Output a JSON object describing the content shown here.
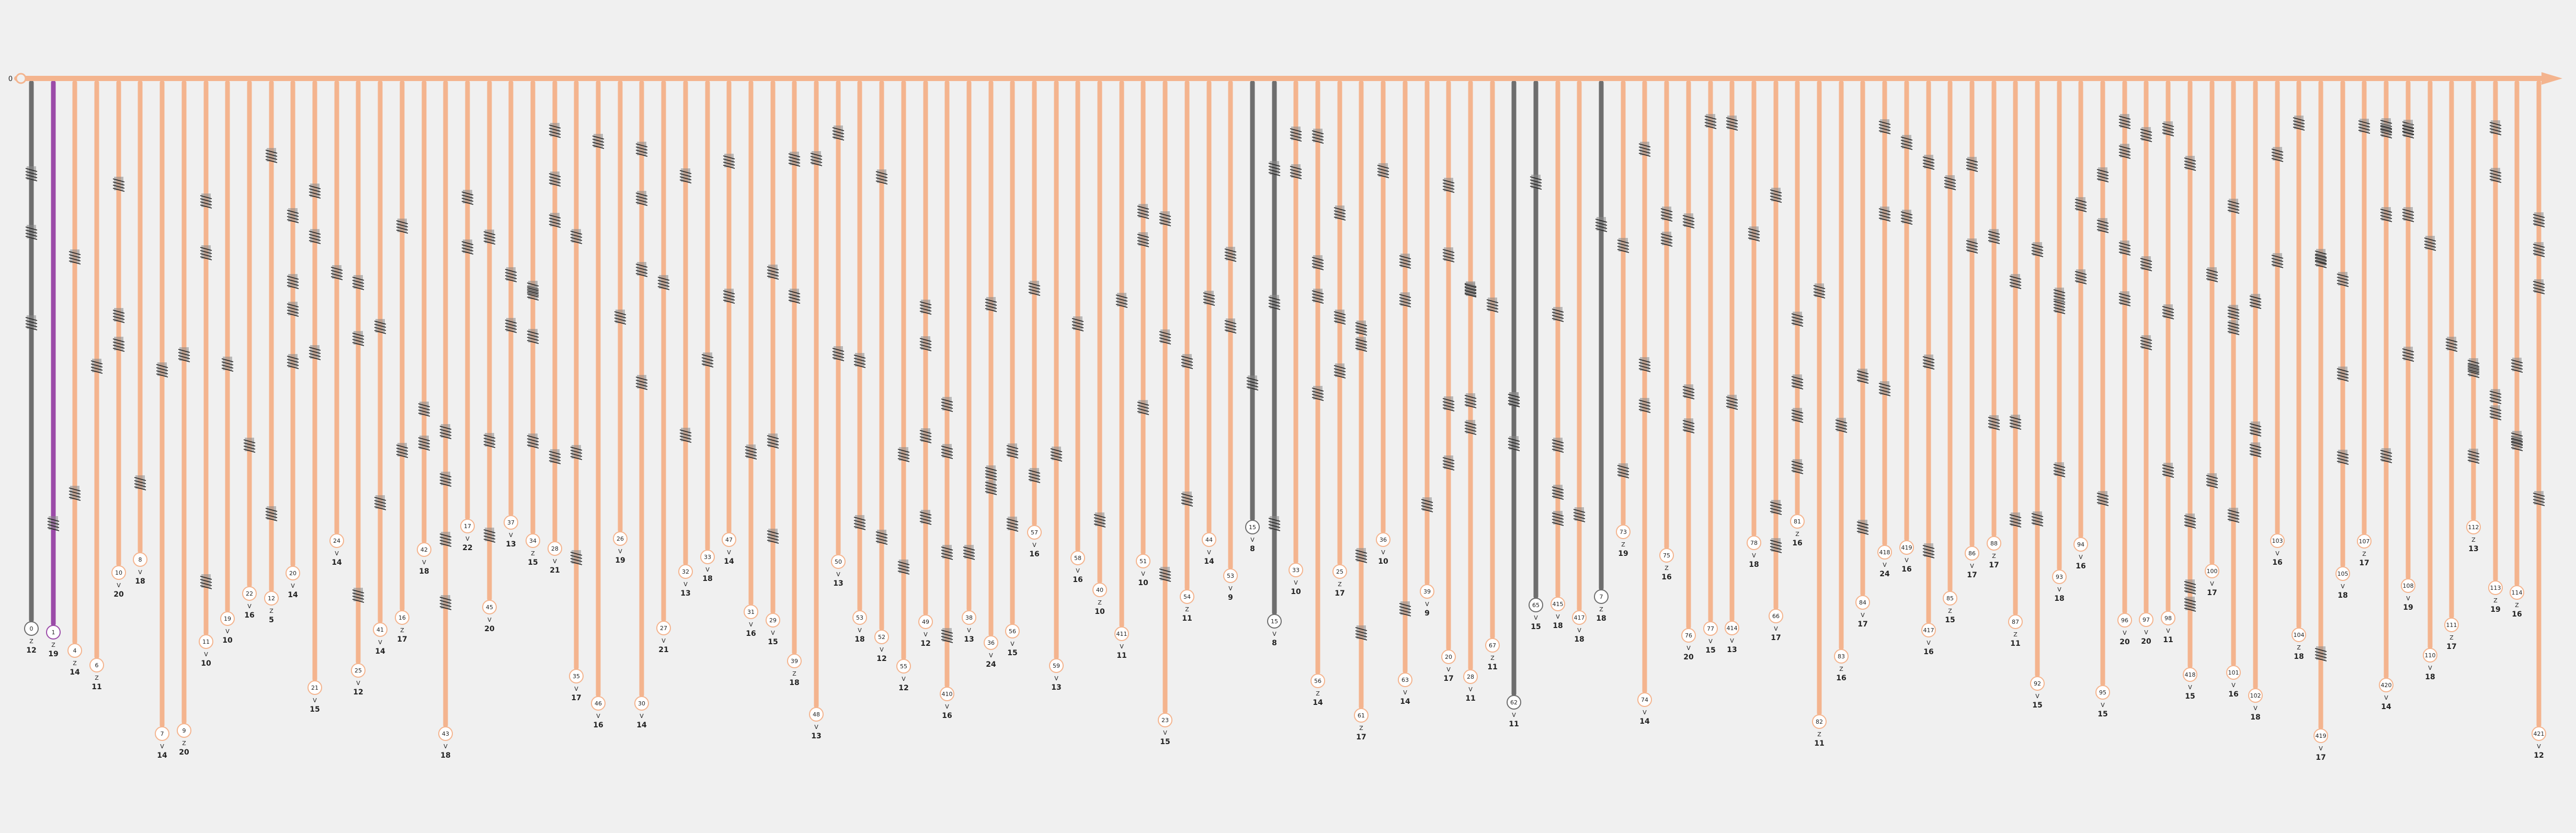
{
  "title": "",
  "root_label": "0",
  "colors": {
    "background": "#f0f0f0",
    "branch": "#f4b48e",
    "branch_highlight": "#9b4ba8",
    "branch_muted": "#6e6e6e",
    "label_circle": "#ffffff",
    "text": "#222222",
    "hatch": "#222222"
  },
  "branches": [
    {
      "label": "0",
      "mark": "Z",
      "value": "12",
      "color": "muted"
    },
    {
      "label": "1",
      "mark": "Z",
      "value": "19",
      "color": "highlight"
    },
    {
      "label": "4",
      "mark": "Z",
      "value": "14"
    },
    {
      "label": "6",
      "mark": "Z",
      "value": "11"
    },
    {
      "label": "10",
      "mark": "V",
      "value": "20"
    },
    {
      "label": "8",
      "mark": "V",
      "value": "18"
    },
    {
      "label": "7",
      "mark": "V",
      "value": "14"
    },
    {
      "label": "9",
      "mark": "Z",
      "value": "20"
    },
    {
      "label": "11",
      "mark": "V",
      "value": "10"
    },
    {
      "label": "19",
      "mark": "V",
      "value": "10"
    },
    {
      "label": "22",
      "mark": "V",
      "value": "16"
    },
    {
      "label": "12",
      "mark": "Z",
      "value": "5"
    },
    {
      "label": "20",
      "mark": "V",
      "value": "14"
    },
    {
      "label": "21",
      "mark": "V",
      "value": "15"
    },
    {
      "label": "24",
      "mark": "V",
      "value": "14"
    },
    {
      "label": "25",
      "mark": "V",
      "value": "12"
    },
    {
      "label": "41",
      "mark": "V",
      "value": "14"
    },
    {
      "label": "16",
      "mark": "Z",
      "value": "17"
    },
    {
      "label": "42",
      "mark": "V",
      "value": "18"
    },
    {
      "label": "43",
      "mark": "V",
      "value": "18"
    },
    {
      "label": "17",
      "mark": "V",
      "value": "22"
    },
    {
      "label": "45",
      "mark": "V",
      "value": "20"
    },
    {
      "label": "37",
      "mark": "V",
      "value": "13"
    },
    {
      "label": "34",
      "mark": "Z",
      "value": "15"
    },
    {
      "label": "28",
      "mark": "V",
      "value": "21"
    },
    {
      "label": "35",
      "mark": "V",
      "value": "17"
    },
    {
      "label": "46",
      "mark": "V",
      "value": "16"
    },
    {
      "label": "26",
      "mark": "V",
      "value": "19"
    },
    {
      "label": "30",
      "mark": "V",
      "value": "14"
    },
    {
      "label": "27",
      "mark": "V",
      "value": "21"
    },
    {
      "label": "32",
      "mark": "V",
      "value": "13"
    },
    {
      "label": "33",
      "mark": "V",
      "value": "18"
    },
    {
      "label": "47",
      "mark": "V",
      "value": "14"
    },
    {
      "label": "31",
      "mark": "V",
      "value": "16"
    },
    {
      "label": "29",
      "mark": "V",
      "value": "15"
    },
    {
      "label": "39",
      "mark": "Z",
      "value": "18"
    },
    {
      "label": "48",
      "mark": "V",
      "value": "13"
    },
    {
      "label": "50",
      "mark": "V",
      "value": "13"
    },
    {
      "label": "53",
      "mark": "V",
      "value": "18"
    },
    {
      "label": "52",
      "mark": "V",
      "value": "12"
    },
    {
      "label": "55",
      "mark": "V",
      "value": "12"
    },
    {
      "label": "49",
      "mark": "V",
      "value": "12"
    },
    {
      "label": "410",
      "mark": "V",
      "value": "16"
    },
    {
      "label": "38",
      "mark": "V",
      "value": "13"
    },
    {
      "label": "36",
      "mark": "V",
      "value": "24"
    },
    {
      "label": "56",
      "mark": "V",
      "value": "15"
    },
    {
      "label": "57",
      "mark": "V",
      "value": "16"
    },
    {
      "label": "59",
      "mark": "V",
      "value": "13"
    },
    {
      "label": "58",
      "mark": "V",
      "value": "16"
    },
    {
      "label": "40",
      "mark": "Z",
      "value": "10"
    },
    {
      "label": "411",
      "mark": "V",
      "value": "11"
    },
    {
      "label": "51",
      "mark": "V",
      "value": "10"
    },
    {
      "label": "23",
      "mark": "V",
      "value": "15"
    },
    {
      "label": "54",
      "mark": "Z",
      "value": "11"
    },
    {
      "label": "44",
      "mark": "V",
      "value": "14"
    },
    {
      "label": "53",
      "mark": "V",
      "value": "9"
    },
    {
      "label": "15",
      "mark": "V",
      "value": "8",
      "color": "muted"
    },
    {
      "label": "15",
      "mark": "V",
      "value": "8",
      "color": "muted"
    },
    {
      "label": "33",
      "mark": "V",
      "value": "10"
    },
    {
      "label": "56",
      "mark": "Z",
      "value": "14"
    },
    {
      "label": "25",
      "mark": "Z",
      "value": "17"
    },
    {
      "label": "61",
      "mark": "Z",
      "value": "17"
    },
    {
      "label": "36",
      "mark": "V",
      "value": "10"
    },
    {
      "label": "63",
      "mark": "V",
      "value": "14"
    },
    {
      "label": "39",
      "mark": "V",
      "value": "9"
    },
    {
      "label": "20",
      "mark": "V",
      "value": "17"
    },
    {
      "label": "28",
      "mark": "V",
      "value": "11"
    },
    {
      "label": "67",
      "mark": "Z",
      "value": "11"
    },
    {
      "label": "62",
      "mark": "V",
      "value": "11",
      "color": "muted"
    },
    {
      "label": "65",
      "mark": "V",
      "value": "15",
      "color": "muted"
    },
    {
      "label": "415",
      "mark": "V",
      "value": "18"
    },
    {
      "label": "417",
      "mark": "V",
      "value": "18"
    },
    {
      "label": "7",
      "mark": "Z",
      "value": "18",
      "color": "muted"
    },
    {
      "label": "73",
      "mark": "Z",
      "value": "19"
    },
    {
      "label": "74",
      "mark": "V",
      "value": "14"
    },
    {
      "label": "75",
      "mark": "Z",
      "value": "16"
    },
    {
      "label": "76",
      "mark": "V",
      "value": "20"
    },
    {
      "label": "77",
      "mark": "V",
      "value": "15"
    },
    {
      "label": "414",
      "mark": "V",
      "value": "13"
    },
    {
      "label": "78",
      "mark": "V",
      "value": "18"
    },
    {
      "label": "66",
      "mark": "V",
      "value": "17"
    },
    {
      "label": "81",
      "mark": "Z",
      "value": "16"
    },
    {
      "label": "82",
      "mark": "Z",
      "value": "11"
    },
    {
      "label": "83",
      "mark": "Z",
      "value": "16"
    },
    {
      "label": "84",
      "mark": "V",
      "value": "17"
    },
    {
      "label": "418",
      "mark": "V",
      "value": "24"
    },
    {
      "label": "419",
      "mark": "V",
      "value": "16"
    },
    {
      "label": "417",
      "mark": "V",
      "value": "16"
    },
    {
      "label": "85",
      "mark": "Z",
      "value": "15"
    },
    {
      "label": "86",
      "mark": "V",
      "value": "17"
    },
    {
      "label": "88",
      "mark": "Z",
      "value": "17"
    },
    {
      "label": "87",
      "mark": "Z",
      "value": "11"
    },
    {
      "label": "92",
      "mark": "V",
      "value": "15"
    },
    {
      "label": "93",
      "mark": "V",
      "value": "18"
    },
    {
      "label": "94",
      "mark": "V",
      "value": "16"
    },
    {
      "label": "95",
      "mark": "V",
      "value": "15"
    },
    {
      "label": "96",
      "mark": "V",
      "value": "20"
    },
    {
      "label": "97",
      "mark": "V",
      "value": "20"
    },
    {
      "label": "98",
      "mark": "V",
      "value": "11"
    },
    {
      "label": "418",
      "mark": "V",
      "value": "15"
    },
    {
      "label": "100",
      "mark": "V",
      "value": "17"
    },
    {
      "label": "101",
      "mark": "V",
      "value": "16"
    },
    {
      "label": "102",
      "mark": "V",
      "value": "18"
    },
    {
      "label": "103",
      "mark": "V",
      "value": "16"
    },
    {
      "label": "104",
      "mark": "Z",
      "value": "18"
    },
    {
      "label": "419",
      "mark": "V",
      "value": "17"
    },
    {
      "label": "105",
      "mark": "V",
      "value": "18"
    },
    {
      "label": "107",
      "mark": "Z",
      "value": "17"
    },
    {
      "label": "420",
      "mark": "V",
      "value": "14"
    },
    {
      "label": "108",
      "mark": "V",
      "value": "19"
    },
    {
      "label": "110",
      "mark": "V",
      "value": "18"
    },
    {
      "label": "111",
      "mark": "Z",
      "value": "17"
    },
    {
      "label": "112",
      "mark": "Z",
      "value": "13"
    },
    {
      "label": "113",
      "mark": "Z",
      "value": "19"
    },
    {
      "label": "114",
      "mark": "Z",
      "value": "16"
    },
    {
      "label": "421",
      "mark": "V",
      "value": "12"
    }
  ]
}
